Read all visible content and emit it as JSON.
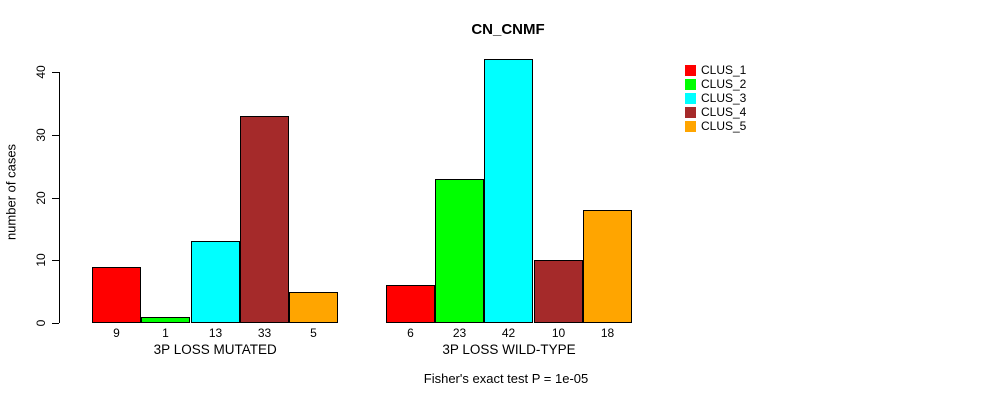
{
  "chart_data": {
    "type": "bar",
    "title": "CN_CNMF",
    "ylabel": "number of cases",
    "xlabel": "",
    "ylim": [
      0,
      40
    ],
    "yticks": [
      0,
      10,
      20,
      30,
      40
    ],
    "grid": false,
    "bar_value_labels_shown": true,
    "legend_position": "top-right",
    "categories": [
      "3P LOSS MUTATED",
      "3P LOSS WILD-TYPE"
    ],
    "series": [
      {
        "name": "CLUS_1",
        "color": "#ff0000",
        "values": [
          9,
          6
        ]
      },
      {
        "name": "CLUS_2",
        "color": "#00ff00",
        "values": [
          1,
          23
        ]
      },
      {
        "name": "CLUS_3",
        "color": "#00ffff",
        "values": [
          13,
          42
        ]
      },
      {
        "name": "CLUS_4",
        "color": "#a52a2a",
        "values": [
          33,
          10
        ]
      },
      {
        "name": "CLUS_5",
        "color": "#ffa500",
        "values": [
          5,
          18
        ]
      }
    ],
    "annotation": "Fisher's exact test P = 1e-05"
  }
}
